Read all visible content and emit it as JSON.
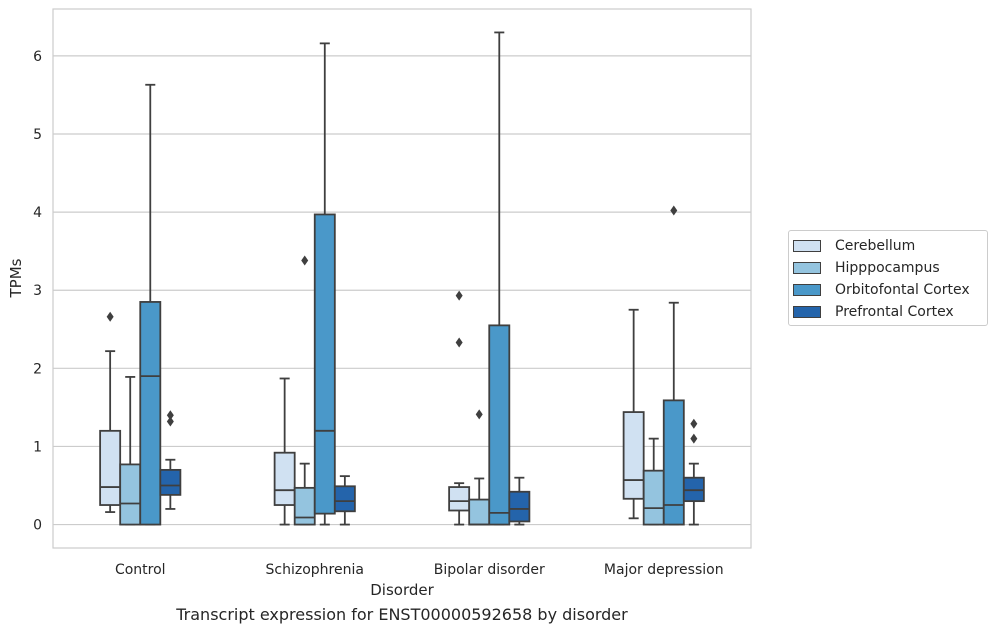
{
  "chart_data": {
    "type": "box",
    "title": "Transcript expression for ENST00000592658 by disorder",
    "xlabel": "Disorder",
    "ylabel": "TPMs",
    "ylim": [
      -0.3,
      6.6
    ],
    "yticks": [
      0,
      1,
      2,
      3,
      4,
      5,
      6
    ],
    "grid": true,
    "legend_position": "right",
    "categories": [
      "Control",
      "Schizophrenia",
      "Bipolar disorder",
      "Major depression"
    ],
    "series": [
      {
        "name": "Cerebellum",
        "color": "#d0e1f2",
        "boxes": [
          {
            "whisker_low": 0.16,
            "q1": 0.25,
            "median": 0.48,
            "q3": 1.2,
            "whisker_high": 2.22,
            "outliers": [
              2.66
            ]
          },
          {
            "whisker_low": 0.0,
            "q1": 0.25,
            "median": 0.44,
            "q3": 0.92,
            "whisker_high": 1.87,
            "outliers": []
          },
          {
            "whisker_low": 0.0,
            "q1": 0.18,
            "median": 0.3,
            "q3": 0.48,
            "whisker_high": 0.53,
            "outliers": [
              2.33,
              2.93
            ]
          },
          {
            "whisker_low": 0.08,
            "q1": 0.33,
            "median": 0.57,
            "q3": 1.44,
            "whisker_high": 2.75,
            "outliers": []
          }
        ]
      },
      {
        "name": "Hipppocampus",
        "color": "#94c4df",
        "boxes": [
          {
            "whisker_low": 0.0,
            "q1": 0.0,
            "median": 0.27,
            "q3": 0.77,
            "whisker_high": 1.89,
            "outliers": []
          },
          {
            "whisker_low": 0.0,
            "q1": 0.0,
            "median": 0.09,
            "q3": 0.47,
            "whisker_high": 0.78,
            "outliers": [
              3.38
            ]
          },
          {
            "whisker_low": 0.0,
            "q1": 0.0,
            "median": 0.0,
            "q3": 0.32,
            "whisker_high": 0.59,
            "outliers": [
              1.41
            ]
          },
          {
            "whisker_low": 0.0,
            "q1": 0.0,
            "median": 0.21,
            "q3": 0.69,
            "whisker_high": 1.1,
            "outliers": []
          }
        ]
      },
      {
        "name": "Orbitofontal Cortex",
        "color": "#4a98c9",
        "boxes": [
          {
            "whisker_low": 0.0,
            "q1": 0.0,
            "median": 1.9,
            "q3": 2.85,
            "whisker_high": 5.63,
            "outliers": []
          },
          {
            "whisker_low": 0.0,
            "q1": 0.14,
            "median": 1.2,
            "q3": 3.97,
            "whisker_high": 6.16,
            "outliers": []
          },
          {
            "whisker_low": 0.0,
            "q1": 0.0,
            "median": 0.15,
            "q3": 2.55,
            "whisker_high": 6.3,
            "outliers": []
          },
          {
            "whisker_low": 0.0,
            "q1": 0.0,
            "median": 0.25,
            "q3": 1.59,
            "whisker_high": 2.84,
            "outliers": [
              4.02
            ]
          }
        ]
      },
      {
        "name": "Prefrontal Cortex",
        "color": "#2464ab",
        "boxes": [
          {
            "whisker_low": 0.2,
            "q1": 0.38,
            "median": 0.5,
            "q3": 0.7,
            "whisker_high": 0.83,
            "outliers": [
              1.32,
              1.4
            ]
          },
          {
            "whisker_low": 0.0,
            "q1": 0.17,
            "median": 0.3,
            "q3": 0.49,
            "whisker_high": 0.62,
            "outliers": []
          },
          {
            "whisker_low": 0.0,
            "q1": 0.04,
            "median": 0.2,
            "q3": 0.42,
            "whisker_high": 0.6,
            "outliers": []
          },
          {
            "whisker_low": 0.0,
            "q1": 0.3,
            "median": 0.44,
            "q3": 0.6,
            "whisker_high": 0.78,
            "outliers": [
              1.1,
              1.29
            ]
          }
        ]
      }
    ]
  }
}
